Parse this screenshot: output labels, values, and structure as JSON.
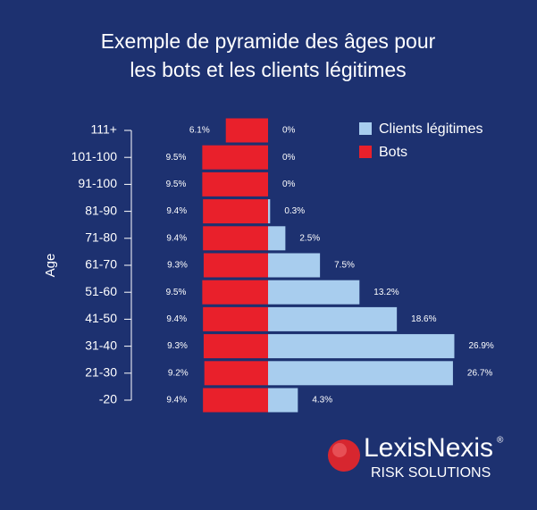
{
  "chart_data": {
    "type": "pyramid",
    "title": [
      "Exemple de pyramide des âges pour",
      "les bots et les clients légitimes"
    ],
    "y_label": "Age",
    "categories": [
      "111+",
      "101-100",
      "91-100",
      "81-90",
      "71-80",
      "61-70",
      "51-60",
      "41-50",
      "31-40",
      "21-30",
      "-20"
    ],
    "series": [
      {
        "name": "Clients légitimes",
        "color": "#a8cdee",
        "side": "right",
        "values": [
          0,
          0,
          0,
          0.3,
          2.5,
          7.5,
          13.2,
          18.6,
          26.9,
          26.7,
          4.3
        ],
        "value_labels": [
          "0%",
          "0%",
          "0%",
          "0.3%",
          "2.5%",
          "7.5%",
          "13.2%",
          "18.6%",
          "26.9%",
          "26.7%",
          "4.3%"
        ]
      },
      {
        "name": "Bots",
        "color": "#e9202b",
        "side": "left",
        "values": [
          6.1,
          9.5,
          9.5,
          9.4,
          9.4,
          9.3,
          9.5,
          9.4,
          9.3,
          9.2,
          9.4
        ],
        "value_labels": [
          "6.1%",
          "9.5%",
          "9.5%",
          "9.4%",
          "9.4%",
          "9.3%",
          "9.5%",
          "9.4%",
          "9.3%",
          "9.2%",
          "9.4%"
        ]
      }
    ],
    "legend": "top-right",
    "annotations": [
      "LexisNexis",
      "®",
      "RISK SOLUTIONS"
    ]
  }
}
